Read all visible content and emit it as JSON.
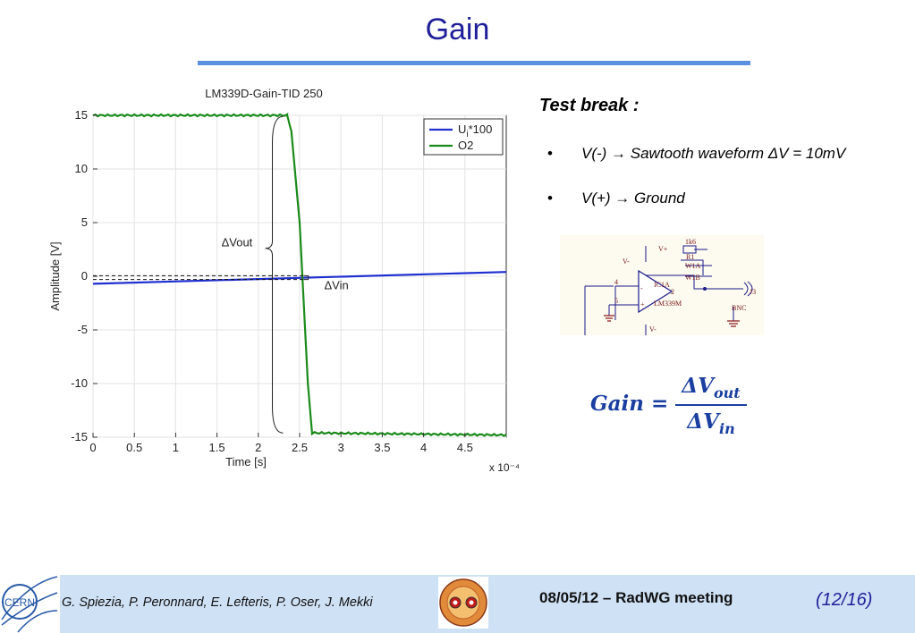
{
  "slide": {
    "title": "Gain",
    "test_heading": "Test break :",
    "bullets": [
      "V(-) → Sawtooth waveform ΔV = 10mV",
      "V(+) → Ground"
    ],
    "bullet_glyph": "•",
    "formula": {
      "lhs": "Gain =",
      "num_main": "ΔV",
      "num_sub": "out",
      "den_main": "ΔV",
      "den_sub": "in"
    },
    "schematic": {
      "labels": [
        "V+",
        "1k6",
        "R1",
        "W1A",
        "W1B",
        "V-",
        "IC1A",
        "LM339M",
        "J3",
        "BNC",
        "4",
        "5",
        "2",
        "+",
        "-",
        "V-"
      ]
    },
    "footer": {
      "authors": "G. Spiezia, P. Peronnard, E. Lefteris, P. Oser, J. Mekki",
      "meeting": "08/05/12 – RadWG meeting",
      "page": "(12/16)",
      "logo_text": "CERN"
    },
    "colors": {
      "title": "#1f1f9a",
      "rule": "#5b8fe0",
      "footer_bg": "#cfe1f5",
      "formula": "#1a3fa0"
    }
  },
  "chart_data": {
    "type": "line",
    "title": "LM339D-Gain-TID 250",
    "xlabel": "Time [s]",
    "ylabel": "Amplitude [V]",
    "x_multiplier": "x 10⁻⁴",
    "xlim": [
      0,
      0.0005
    ],
    "ylim": [
      -15,
      15
    ],
    "x_ticks": [
      0,
      0.5,
      1,
      1.5,
      2,
      2.5,
      3,
      3.5,
      4,
      4.5
    ],
    "x_tick_labels": [
      "0",
      "0.5",
      "1",
      "1.5",
      "2",
      "2.5",
      "3",
      "3.5",
      "4",
      "4.5"
    ],
    "y_ticks": [
      15,
      10,
      5,
      0,
      -5,
      -10,
      -15
    ],
    "y_tick_labels": [
      "15",
      "10",
      "5",
      "0",
      "-5",
      "-10",
      "-15"
    ],
    "grid": true,
    "legend": "top-right",
    "series": [
      {
        "name": "U",
        "name_sub": "i",
        "name_suffix": "*100",
        "color": "#1f2fd0",
        "x": [
          0,
          0.0005
        ],
        "y": [
          -0.7,
          0.4
        ]
      },
      {
        "name": "O2",
        "color": "#1a8a1a",
        "x": [
          0,
          0.000235,
          0.00024,
          0.00025,
          0.00026,
          0.000265,
          0.0005
        ],
        "y": [
          15.0,
          15.0,
          13.5,
          5.0,
          -10.0,
          -14.6,
          -14.8
        ]
      }
    ],
    "annotations": [
      {
        "text": "ΔVout",
        "x": 0.000185,
        "y": 2.8
      },
      {
        "text": "ΔVin",
        "x": 0.000275,
        "y": -0.7
      }
    ]
  }
}
